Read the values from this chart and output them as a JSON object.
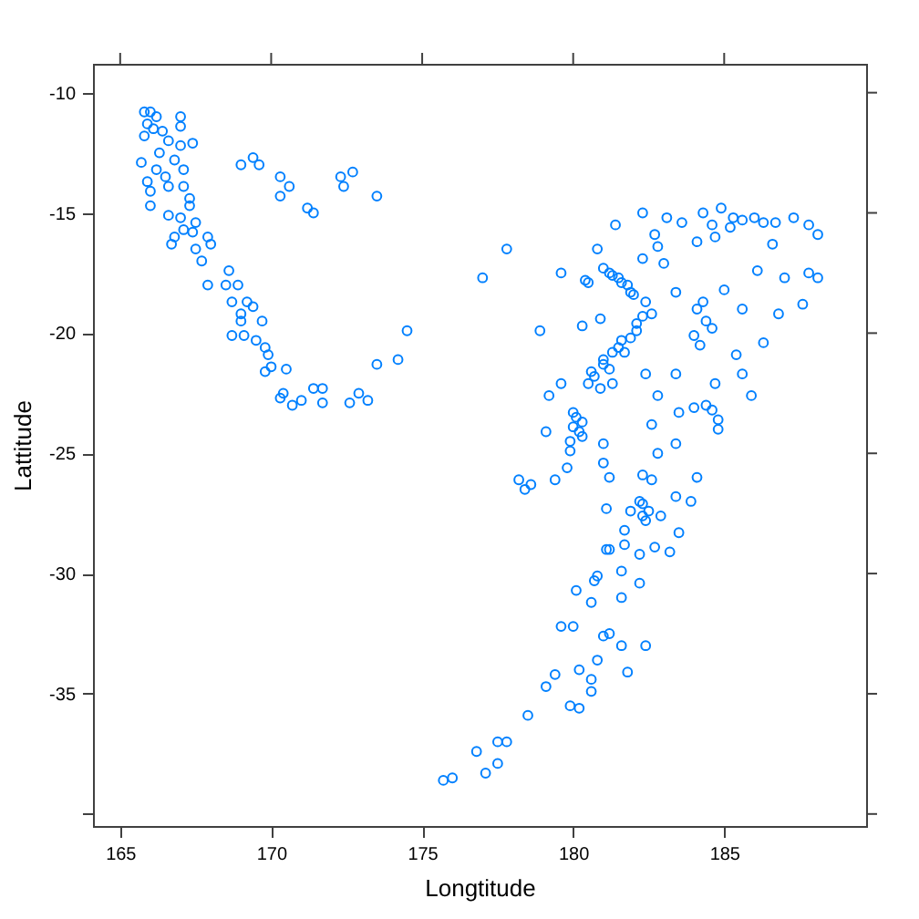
{
  "chart_data": {
    "type": "scatter",
    "xlabel": "Longtitude",
    "ylabel": "Lattitude",
    "marker": "circle",
    "xlim": [
      164.1,
      189.7
    ],
    "ylim": [
      -40.5,
      -8.8
    ],
    "xticks": [
      165,
      170,
      175,
      180,
      185
    ],
    "yticks": [
      -10,
      -15,
      -20,
      -25,
      -30,
      -35,
      {
        "value": -40,
        "label": null
      }
    ],
    "series": [
      {
        "color": "#0080ff",
        "x": [
          165.8,
          166.0,
          166.2,
          165.9,
          166.1,
          166.4,
          165.8,
          167.0,
          167.0,
          166.6,
          167.0,
          167.4,
          166.3,
          165.7,
          166.8,
          166.2,
          166.5,
          167.1,
          165.9,
          166.6,
          167.1,
          166.0,
          166.0,
          167.3,
          167.3,
          166.6,
          167.0,
          167.5,
          166.8,
          167.1,
          167.4,
          167.9,
          168.0,
          167.5,
          166.7,
          167.7,
          168.6,
          167.9,
          168.5,
          168.9,
          168.7,
          169.2,
          169.4,
          169.0,
          169.0,
          169.7,
          168.7,
          169.1,
          169.5,
          169.8,
          169.9,
          169.8,
          170.0,
          170.5,
          170.4,
          170.7,
          171.0,
          171.4,
          171.7,
          171.7,
          172.6,
          172.9,
          173.2,
          170.3,
          173.5,
          174.2,
          174.5,
          169.0,
          169.4,
          169.6,
          170.3,
          170.6,
          170.3,
          171.2,
          171.4,
          172.3,
          172.4,
          172.7,
          173.5,
          177.8,
          177.0,
          178.9,
          182.3,
          181.4,
          183.1,
          184.3,
          184.9,
          185.2,
          186.0,
          186.7,
          187.3,
          187.8,
          188.1,
          188.1,
          187.6,
          180.8,
          179.6,
          182.8,
          182.7,
          184.1,
          184.7,
          186.6,
          187.0,
          187.8,
          186.1,
          181.2,
          181.6,
          181.9,
          180.5,
          182.3,
          183.0,
          183.4,
          182.6,
          182.4,
          180.9,
          180.3,
          184.3,
          184.4,
          184.0,
          185.0,
          185.6,
          186.8,
          186.3,
          185.4,
          185.9,
          184.7,
          185.6,
          181.5,
          181.0,
          180.6,
          182.1,
          180.5,
          179.6,
          179.2,
          180.1,
          180.2,
          179.1,
          179.9,
          179.8,
          179.4,
          178.6,
          181.3,
          182.4,
          183.4,
          182.8,
          184.0,
          184.6,
          184.8,
          183.5,
          182.6,
          182.8,
          181.0,
          181.0,
          181.2,
          182.3,
          182.6,
          183.4,
          184.1,
          183.4,
          183.9,
          182.3,
          182.4,
          181.9,
          182.9,
          183.5,
          181.1,
          181.7,
          181.2,
          182.7,
          182.2,
          183.2,
          181.7,
          178.2,
          178.4,
          180.1,
          180.6,
          179.6,
          181.2,
          181.6,
          180.7,
          182.2,
          181.1,
          180.8,
          181.6,
          180.0,
          181.0,
          181.6,
          182.4,
          181.8,
          180.8,
          180.2,
          179.4,
          179.1,
          180.6,
          180.6,
          179.9,
          180.2,
          178.5,
          176.8,
          177.5,
          177.8,
          177.5,
          177.1,
          176.0,
          175.7,
          181.0,
          181.3,
          181.5,
          181.8,
          182.0,
          180.4,
          180.7,
          181.0,
          181.3,
          181.6,
          181.9,
          182.1,
          182.3,
          181.2,
          181.7,
          180.9,
          180.0,
          180.3,
          180.0,
          180.3,
          179.9,
          182.2,
          182.5,
          182.3,
          184.1,
          184.6,
          184.2,
          184.4,
          184.8,
          185.6,
          186.3,
          185.3,
          184.6,
          183.6
        ],
        "values": [
          -10.8,
          -10.8,
          -11.0,
          -11.3,
          -11.5,
          -11.6,
          -11.8,
          -11.0,
          -11.4,
          -12.0,
          -12.2,
          -12.1,
          -12.5,
          -12.9,
          -12.8,
          -13.2,
          -13.5,
          -13.2,
          -13.7,
          -13.9,
          -13.9,
          -14.1,
          -14.7,
          -14.4,
          -14.7,
          -15.1,
          -15.2,
          -15.4,
          -16.0,
          -15.7,
          -15.8,
          -16.0,
          -16.3,
          -16.5,
          -16.3,
          -17.0,
          -17.4,
          -18.0,
          -18.0,
          -18.0,
          -18.7,
          -18.7,
          -18.9,
          -19.2,
          -19.5,
          -19.5,
          -20.1,
          -20.1,
          -20.3,
          -20.6,
          -20.9,
          -21.6,
          -21.4,
          -21.5,
          -22.5,
          -23.0,
          -22.8,
          -22.3,
          -22.3,
          -22.9,
          -22.9,
          -22.5,
          -22.8,
          -22.7,
          -21.3,
          -21.1,
          -19.9,
          -13.0,
          -12.7,
          -13.0,
          -13.5,
          -13.9,
          -14.3,
          -14.8,
          -15.0,
          -13.5,
          -13.9,
          -13.3,
          -14.3,
          -16.5,
          -17.7,
          -19.9,
          -15.0,
          -15.5,
          -15.2,
          -15.0,
          -14.8,
          -15.6,
          -15.2,
          -15.4,
          -15.2,
          -15.5,
          -15.9,
          -17.7,
          -18.8,
          -16.5,
          -17.5,
          -16.4,
          -15.9,
          -16.2,
          -16.0,
          -16.3,
          -17.7,
          -17.5,
          -17.4,
          -17.5,
          -17.9,
          -18.3,
          -17.9,
          -16.9,
          -17.1,
          -18.3,
          -19.2,
          -18.7,
          -19.4,
          -19.7,
          -18.7,
          -19.5,
          -20.1,
          -18.2,
          -19.0,
          -19.2,
          -20.4,
          -20.9,
          -22.6,
          -22.1,
          -21.7,
          -20.6,
          -21.1,
          -21.6,
          -19.9,
          -22.1,
          -22.1,
          -22.6,
          -23.5,
          -24.1,
          -24.1,
          -24.9,
          -25.6,
          -26.1,
          -26.3,
          -22.1,
          -21.7,
          -21.7,
          -22.6,
          -23.1,
          -23.2,
          -24.0,
          -23.3,
          -23.8,
          -25.0,
          -24.6,
          -25.4,
          -26.0,
          -25.9,
          -26.1,
          -24.6,
          -26.0,
          -26.8,
          -27.0,
          -27.1,
          -27.8,
          -27.4,
          -27.6,
          -28.3,
          -27.3,
          -28.2,
          -29.0,
          -28.9,
          -29.2,
          -29.1,
          -28.8,
          -26.1,
          -26.5,
          -30.7,
          -31.2,
          -32.2,
          -32.5,
          -31.0,
          -30.3,
          -30.4,
          -29.0,
          -30.1,
          -29.9,
          -32.2,
          -32.6,
          -33.0,
          -33.0,
          -34.1,
          -33.6,
          -34.0,
          -34.2,
          -34.7,
          -34.4,
          -34.9,
          -35.5,
          -35.6,
          -35.9,
          -37.4,
          -37.0,
          -37.0,
          -37.9,
          -38.3,
          -38.5,
          -38.6,
          -17.3,
          -17.6,
          -17.7,
          -18.0,
          -18.4,
          -17.8,
          -21.8,
          -21.3,
          -20.8,
          -20.3,
          -20.2,
          -19.6,
          -19.3,
          -21.5,
          -20.8,
          -22.3,
          -23.3,
          -23.7,
          -23.9,
          -24.3,
          -24.5,
          -27.0,
          -27.4,
          -27.6,
          -19.0,
          -19.8,
          -20.5,
          -23.0,
          -23.6,
          -15.3,
          -15.4,
          -15.2,
          -15.5,
          -15.4
        ]
      }
    ]
  }
}
